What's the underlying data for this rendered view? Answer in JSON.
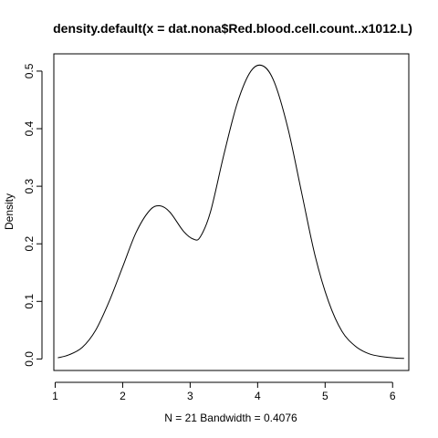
{
  "chart_data": {
    "type": "line",
    "title": "density.default(x = dat.nona$Red.blood.cell.count..x1012.L)",
    "xlabel": "N = 21   Bandwidth = 0.4076",
    "ylabel": "Density",
    "xlim": [
      0.98,
      6.24
    ],
    "ylim": [
      -0.02,
      0.53
    ],
    "x_ticks": [
      1,
      2,
      3,
      4,
      5,
      6
    ],
    "y_ticks": [
      0.0,
      0.1,
      0.2,
      0.3,
      0.4,
      0.5
    ],
    "y_tick_labels": [
      "0.0",
      "0.1",
      "0.2",
      "0.3",
      "0.4",
      "0.5"
    ],
    "grid": false,
    "series": [
      {
        "x": [
          1.04,
          1.2,
          1.4,
          1.6,
          1.8,
          2.0,
          2.2,
          2.4,
          2.55,
          2.7,
          2.9,
          3.05,
          3.15,
          3.3,
          3.5,
          3.7,
          3.9,
          4.08,
          4.25,
          4.45,
          4.65,
          4.85,
          5.05,
          5.25,
          5.45,
          5.65,
          5.85,
          6.05,
          6.17
        ],
        "y": [
          0.002,
          0.007,
          0.02,
          0.05,
          0.1,
          0.16,
          0.22,
          0.258,
          0.266,
          0.255,
          0.222,
          0.208,
          0.212,
          0.255,
          0.355,
          0.445,
          0.5,
          0.509,
          0.48,
          0.4,
          0.29,
          0.18,
          0.1,
          0.048,
          0.022,
          0.009,
          0.004,
          0.0015,
          0.001
        ]
      }
    ]
  }
}
